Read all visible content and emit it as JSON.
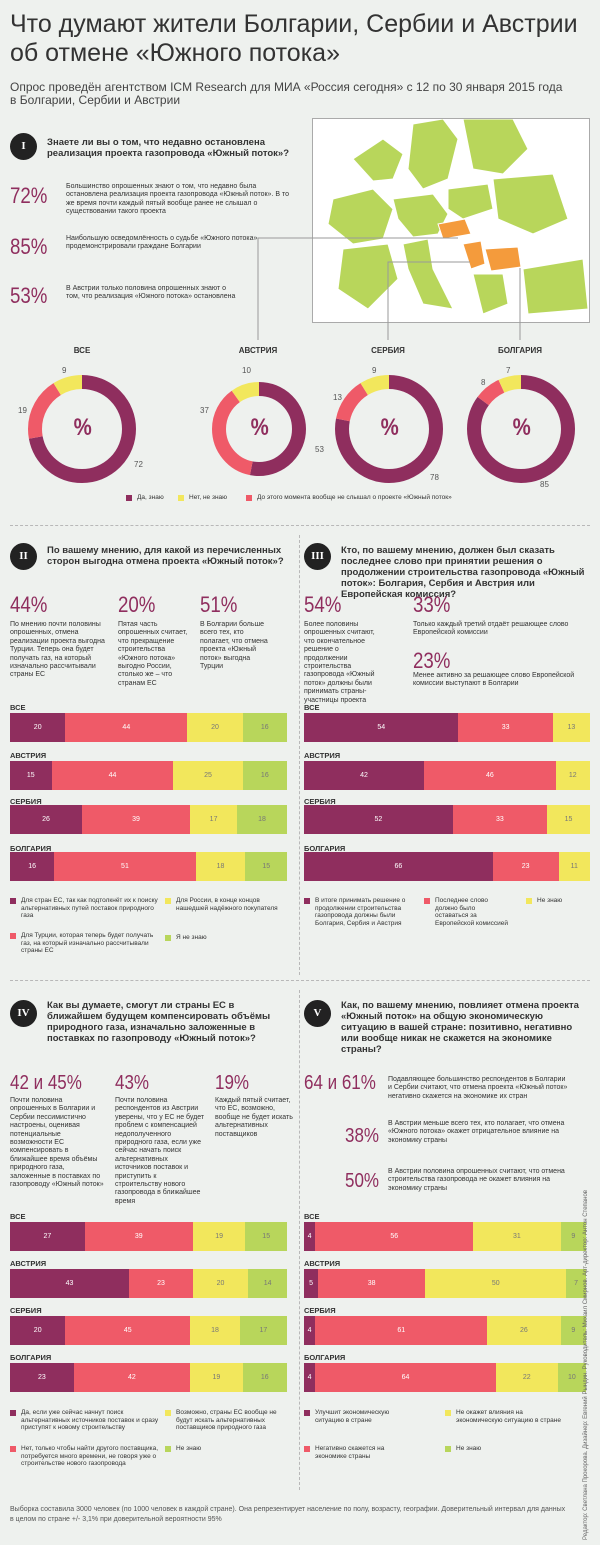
{
  "header": {
    "title": "Что думают жители Болгарии, Сербии и Австрии об отмене «Южного потока»",
    "subtitle": "Опрос проведён агентством ICM Research для МИА «Россия сегодня» с 12 по 30 января 2015 года в Болгарии, Сербии и Австрии"
  },
  "colors": {
    "purple": "#8f2e5e",
    "red": "#ef5a68",
    "yellow": "#f2e75c",
    "green": "#b8d65b",
    "orange": "#f49b3c"
  },
  "q1": {
    "badge": "I",
    "question": "Знаете ли вы о том, что недавно остановлена реализация проекта газопровода «Южный поток»?",
    "facts": [
      {
        "big": "72%",
        "text": "Большинство опрошенных знают о том, что недавно была остановлена реализация проекта газопровода «Южный поток». В то же время почти каждый пятый вообще ранее не слышал о существовании такого проекта"
      },
      {
        "big": "85%",
        "text": "Наибольшую осведомлённость о судьбе «Южного потока» продемонстрировали граждане Болгарии"
      },
      {
        "big": "53%",
        "text": "В Австрии только половина опрошенных знают о том, что реализация «Южного потока» остановлена"
      }
    ],
    "center": "%",
    "legend": [
      "Да, знаю",
      "Нет, не знаю",
      "До этого момента вообще не слышал о проекте «Южный поток»"
    ]
  },
  "q2": {
    "badge": "II",
    "question": "По вашему мнению, для какой из перечисленных сторон выгодна отмена проекта «Южный поток»?",
    "facts": [
      {
        "big": "44%",
        "text": "По мнению почти половины опрошенных, отмена реализации проекта выгодна Турции. Теперь она будет получать газ, на который изначально рассчитывали страны ЕС"
      },
      {
        "big": "20%",
        "text": "Пятая часть опрошенных считает, что прекращение строительства «Южного потока» выгодно России, столько же – что странам ЕС"
      },
      {
        "big": "51%",
        "text": "В Болгарии больше всего тех, кто полагает, что отмена проекта «Южный поток» выгодна Турции"
      }
    ],
    "legend": [
      "Для стран ЕС, так как подтолкнёт их к поиску альтернативных путей поставок природного газа",
      "Для России, в конце концов нашедшей надёжного покупателя",
      "Для Турции, которая теперь будет получать газ, на который изначально рассчитывали страны ЕС",
      "Я не знаю"
    ]
  },
  "q3": {
    "badge": "III",
    "question": "Кто, по вашему мнению, должен был сказать последнее слово при принятии решения о продолжении строительства газопровода «Южный поток»: Болгария, Сербия и Австрия или Европейская комиссия?",
    "facts": [
      {
        "big": "54%",
        "text": "Более половины опрошенных считают, что окончательное решение о продолжении строительства газопровода «Южный поток» должны были принимать страны-участницы проекта"
      },
      {
        "big": "33%",
        "text": "Только каждый третий отдаёт решающее слово Европейской комиссии"
      },
      {
        "big": "23%",
        "text": "Менее активно за решающее слово Европейской комиссии выступают в Болгарии"
      }
    ],
    "legend": [
      "В итоге принимать решение о продолжении строительства газопровода должны были Болгария, Сербия и Австрия",
      "Последнее слово должно было оставаться за Европейской комиссией",
      "Не знаю"
    ]
  },
  "q4": {
    "badge": "IV",
    "question": "Как вы думаете, смогут ли страны ЕС в ближайшем будущем компенсировать объёмы природного газа, изначально заложенные в поставках по газопроводу «Южный поток»?",
    "facts": [
      {
        "big": "42 и 45%",
        "text": "Почти половина опрошенных в Болгарии и Сербии пессимистично настроены, оценивая потенциальные возможности ЕС компенсировать в ближайшее время объёмы природного газа, заложенные в поставках по газопроводу «Южный поток»"
      },
      {
        "big": "43%",
        "text": "Почти половина респондентов из Австрии уверены, что у ЕС не будет проблем с компенсацией недополученного природного газа, если уже сейчас начать поиск альтернативных источников поставок и приступить к строительству нового газопровода в ближайшее время"
      },
      {
        "big": "19%",
        "text": "Каждый пятый считает, что ЕС, возможно, вообще не будет искать альтернативных поставщиков"
      }
    ],
    "legend": [
      "Да, если уже сейчас начнут поиск альтернативных источников поставок и сразу приступят к новому строительству",
      "Возможно, страны ЕС вообще не будут искать альтернативных поставщиков природного газа",
      "Нет, только чтобы найти другого поставщика, потребуется много времени, не говоря уже о строительстве нового газопровода",
      "Не знаю"
    ]
  },
  "q5": {
    "badge": "V",
    "question": "Как, по вашему мнению, повлияет отмена проекта «Южный поток» на общую экономическую ситуацию в вашей стране: позитивно, негативно или вообще никак не скажется на экономике страны?",
    "facts": [
      {
        "big": "64 и 61%",
        "text": "Подавляющее большинство респондентов в Болгарии и Сербии считают, что отмена проекта «Южный поток» негативно скажется на экономике их стран"
      },
      {
        "big": "38%",
        "text": "В Австрии меньше всего тех, кто полагает, что отмена «Южного потока» окажет отрицательное влияние на экономику страны"
      },
      {
        "big": "50%",
        "text": "В Австрии половина опрошенных считают, что отмена строительства газопровода не окажет влияния на экономику страны"
      }
    ],
    "legend": [
      "Улучшит экономическую ситуацию в стране",
      "Не окажет влияния на экономическую ситуацию в стране",
      "Негативно скажется на экономике страны",
      "Не знаю"
    ]
  },
  "footer": "Выборка составила 3000 человек (по 1000 человек в каждой стране). Она репрезентирует население по полу, возрасту, географии. Доверительный интервал для данных в целом по стране +/- 3,1% при доверительной вероятности 95%",
  "credits": "Редактор: Светлана Прокорова. Дизайнер: Евгений Рындин. Руководитель: Михаил Смирнов. Арт-директор: Антон Степанов",
  "chart_data": [
    {
      "type": "pie",
      "title": "Знаете ли вы о том, что недавно остановлена реализация проекта газопровода «Южный поток»?",
      "categories": [
        "Да, знаю",
        "Нет, не знаю",
        "До этого момента вообще не слышал о проекте «Южный поток»"
      ],
      "groups": [
        {
          "name": "ВСЕ",
          "values": [
            72,
            9,
            19
          ]
        },
        {
          "name": "АВСТРИЯ",
          "values": [
            53,
            10,
            37
          ]
        },
        {
          "name": "СЕРБИЯ",
          "values": [
            78,
            9,
            13
          ]
        },
        {
          "name": "БОЛГАРИЯ",
          "values": [
            85,
            7,
            8
          ]
        }
      ]
    },
    {
      "type": "bar",
      "title": "По вашему мнению, для какой из перечисленных сторон выгодна отмена проекта «Южный поток»?",
      "categories": [
        "ВСЕ",
        "АВСТРИЯ",
        "СЕРБИЯ",
        "БОЛГАРИЯ"
      ],
      "series": [
        {
          "name": "Для стран ЕС, так как подтолкнёт их к поиску альтернативных путей поставок природного газа",
          "values": [
            20,
            15,
            26,
            16
          ]
        },
        {
          "name": "Для Турции, которая теперь будет получать газ, на который изначально рассчитывали страны ЕС",
          "values": [
            44,
            44,
            39,
            51
          ]
        },
        {
          "name": "Для России, в конце концов нашедшей надёжного покупателя",
          "values": [
            20,
            25,
            17,
            18
          ]
        },
        {
          "name": "Я не знаю",
          "values": [
            16,
            16,
            18,
            15
          ]
        }
      ]
    },
    {
      "type": "bar",
      "title": "Кто, по вашему мнению, должен был сказать последнее слово при принятии решения о продолжении строительства газопровода «Южный поток»: Болгария, Сербия и Австрия или Европейская комиссия?",
      "categories": [
        "ВСЕ",
        "АВСТРИЯ",
        "СЕРБИЯ",
        "БОЛГАРИЯ"
      ],
      "series": [
        {
          "name": "В итоге принимать решение о продолжении строительства газопровода должны были Болгария, Сербия и Австрия",
          "values": [
            54,
            42,
            52,
            66
          ]
        },
        {
          "name": "Последнее слово должно было оставаться за Европейской комиссией",
          "values": [
            33,
            46,
            33,
            23
          ]
        },
        {
          "name": "Не знаю",
          "values": [
            13,
            12,
            15,
            11
          ]
        }
      ]
    },
    {
      "type": "bar",
      "title": "Как вы думаете, смогут ли страны ЕС в ближайшем будущем компенсировать объёмы природного газа, изначально заложенные в поставках по газопроводу «Южный поток»?",
      "categories": [
        "ВСЕ",
        "АВСТРИЯ",
        "СЕРБИЯ",
        "БОЛГАРИЯ"
      ],
      "series": [
        {
          "name": "Да, если уже сейчас начнут поиск альтернативных источников поставок и сразу приступят к новому строительству",
          "values": [
            27,
            43,
            20,
            23
          ]
        },
        {
          "name": "Нет, только чтобы найти другого поставщика, потребуется много времени, не говоря уже о строительстве нового газопровода",
          "values": [
            39,
            23,
            45,
            42
          ]
        },
        {
          "name": "Возможно, страны ЕС вообще не будут искать альтернативных поставщиков природного газа",
          "values": [
            19,
            20,
            18,
            19
          ]
        },
        {
          "name": "Не знаю",
          "values": [
            15,
            14,
            17,
            16
          ]
        }
      ]
    },
    {
      "type": "bar",
      "title": "Как, по вашему мнению, повлияет отмена проекта «Южный поток» на общую экономическую ситуацию в вашей стране: позитивно, негативно или вообще никак не скажется на экономике страны?",
      "categories": [
        "ВСЕ",
        "АВСТРИЯ",
        "СЕРБИЯ",
        "БОЛГАРИЯ"
      ],
      "series": [
        {
          "name": "Улучшит экономическую ситуацию в стране",
          "values": [
            4,
            5,
            4,
            4
          ]
        },
        {
          "name": "Негативно скажется на экономике страны",
          "values": [
            56,
            38,
            61,
            64
          ]
        },
        {
          "name": "Не окажет влияния на экономическую ситуацию в стране",
          "values": [
            31,
            50,
            26,
            22
          ]
        },
        {
          "name": "Не знаю",
          "values": [
            9,
            7,
            9,
            10
          ]
        }
      ]
    }
  ]
}
